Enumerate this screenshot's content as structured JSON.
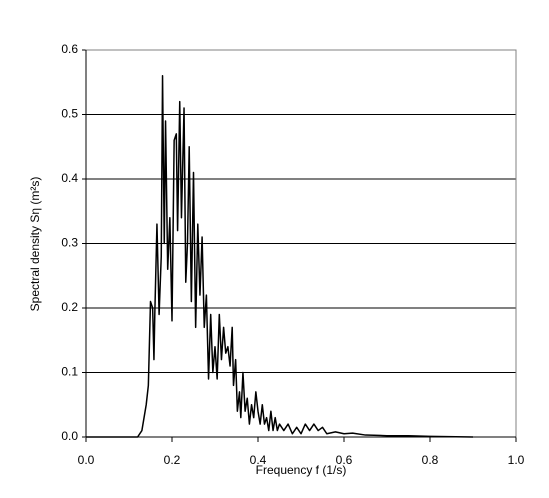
{
  "chart_data": {
    "type": "line",
    "x_label": "Frequency f (1/s)",
    "y_label": "Spectral density Sη (m²s)",
    "x": [
      0,
      0.12,
      0.13,
      0.14,
      0.145,
      0.15,
      0.155,
      0.158,
      0.16,
      0.165,
      0.17,
      0.175,
      0.178,
      0.182,
      0.185,
      0.19,
      0.195,
      0.2,
      0.205,
      0.21,
      0.213,
      0.218,
      0.222,
      0.228,
      0.232,
      0.236,
      0.24,
      0.245,
      0.25,
      0.255,
      0.26,
      0.265,
      0.27,
      0.275,
      0.28,
      0.285,
      0.29,
      0.295,
      0.3,
      0.305,
      0.31,
      0.315,
      0.32,
      0.325,
      0.33,
      0.335,
      0.34,
      0.343,
      0.348,
      0.352,
      0.357,
      0.36,
      0.365,
      0.37,
      0.375,
      0.38,
      0.385,
      0.39,
      0.395,
      0.4,
      0.405,
      0.41,
      0.415,
      0.42,
      0.425,
      0.43,
      0.435,
      0.44,
      0.445,
      0.45,
      0.46,
      0.47,
      0.48,
      0.49,
      0.5,
      0.51,
      0.52,
      0.53,
      0.54,
      0.55,
      0.56,
      0.58,
      0.6,
      0.62,
      0.65,
      0.7,
      0.75,
      0.8,
      0.9
    ],
    "values": [
      0,
      0,
      0.01,
      0.05,
      0.08,
      0.21,
      0.2,
      0.12,
      0.19,
      0.33,
      0.19,
      0.28,
      0.56,
      0.3,
      0.49,
      0.26,
      0.34,
      0.18,
      0.46,
      0.47,
      0.32,
      0.52,
      0.34,
      0.51,
      0.24,
      0.3,
      0.45,
      0.21,
      0.41,
      0.17,
      0.33,
      0.22,
      0.31,
      0.17,
      0.22,
      0.09,
      0.19,
      0.1,
      0.14,
      0.09,
      0.19,
      0.12,
      0.17,
      0.13,
      0.14,
      0.11,
      0.17,
      0.08,
      0.12,
      0.04,
      0.07,
      0.03,
      0.1,
      0.04,
      0.06,
      0.02,
      0.05,
      0.03,
      0.07,
      0.04,
      0.02,
      0.05,
      0.02,
      0.03,
      0.01,
      0.04,
      0.01,
      0.03,
      0.01,
      0.02,
      0.01,
      0.02,
      0.005,
      0.015,
      0.005,
      0.02,
      0.01,
      0.02,
      0.01,
      0.015,
      0.005,
      0.008,
      0.005,
      0.006,
      0.003,
      0.002,
      0.002,
      0.001,
      0
    ],
    "color": "#000000",
    "xlim": [
      0,
      1
    ],
    "xticks": [
      {
        "value": 0,
        "label": "0.0"
      },
      0.2,
      0.4,
      0.6,
      0.8,
      {
        "value": 1,
        "label": "1.0"
      }
    ],
    "ylim": [
      0,
      0.6
    ],
    "yticks": [
      {
        "value": 0,
        "label": "0.0"
      },
      0.1,
      0.2,
      0.3,
      0.4,
      0.5,
      0.6
    ],
    "grid": true
  }
}
